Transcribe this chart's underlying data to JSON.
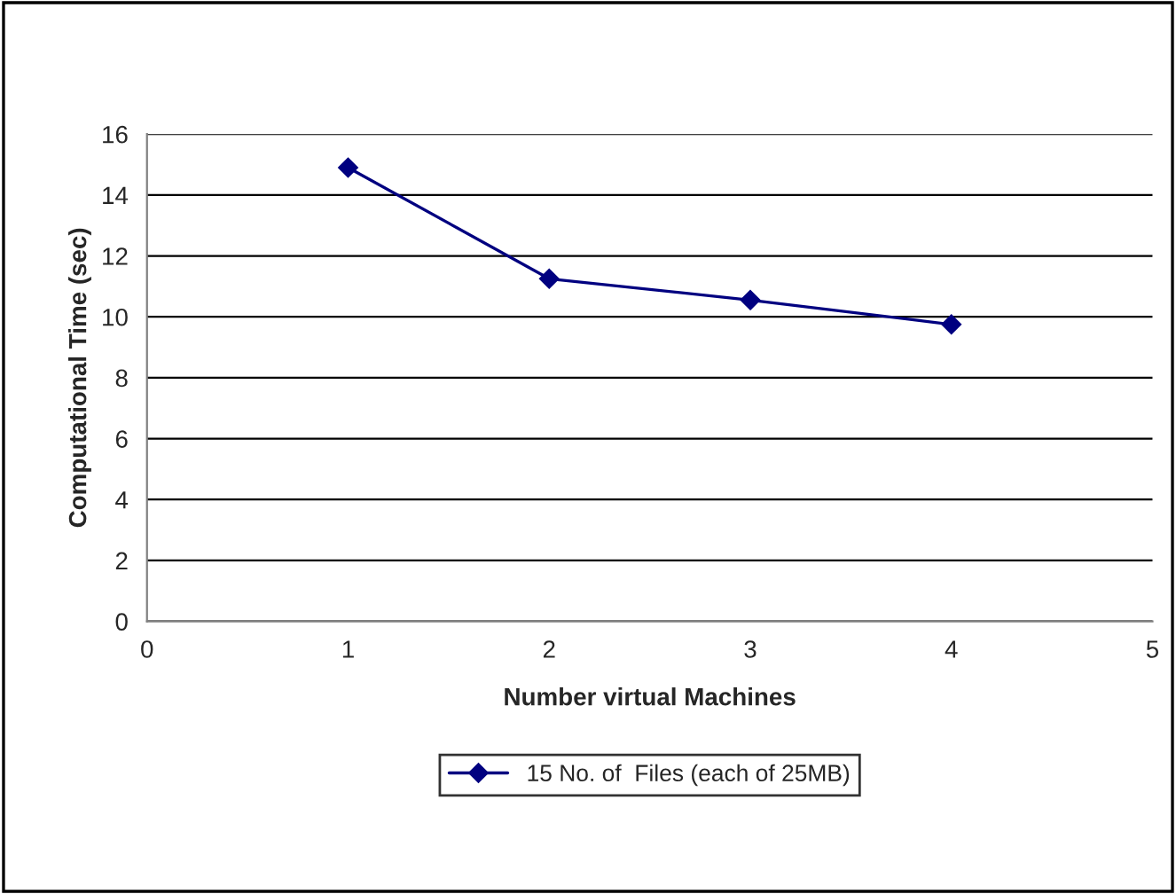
{
  "chart_data": {
    "type": "line",
    "xlabel": "Number virtual Machines",
    "ylabel": "Computational Time (sec)",
    "x": [
      1,
      2,
      3,
      4
    ],
    "series": [
      {
        "name": "15 No. of  Files (each of 25MB)",
        "color": "#000080",
        "values": [
          14.9,
          11.25,
          10.55,
          9.75
        ]
      }
    ],
    "xlim": [
      0,
      5
    ],
    "xticks": [
      0,
      1,
      2,
      3,
      4,
      5
    ],
    "ylim": [
      0,
      16
    ],
    "yticks": [
      0,
      2,
      4,
      6,
      8,
      10,
      12,
      14,
      16
    ],
    "grid": "y",
    "legend": "bottom",
    "marker": "diamond",
    "line_style": "solid"
  }
}
